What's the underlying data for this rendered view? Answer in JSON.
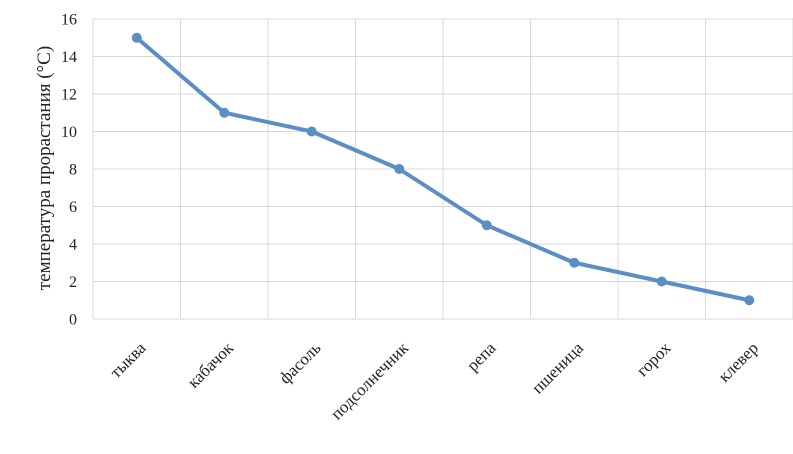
{
  "chart_data": {
    "type": "line",
    "title": "",
    "xlabel": "",
    "ylabel": "температура прорастания (°C)",
    "categories": [
      "тыква",
      "кабачок",
      "фасоль",
      "подсолнечник",
      "репа",
      "пшеница",
      "горох",
      "клевер"
    ],
    "series": [
      {
        "values": [
          15,
          11,
          10,
          8,
          5,
          3,
          2,
          1
        ]
      }
    ],
    "ylim": [
      0,
      16
    ],
    "yticks": [
      0,
      2,
      4,
      6,
      8,
      10,
      12,
      14,
      16
    ],
    "grid": true,
    "legend": "none",
    "colors": {
      "line": "#5b8ec4",
      "grid": "#d9d9d9",
      "text": "#222222"
    }
  }
}
